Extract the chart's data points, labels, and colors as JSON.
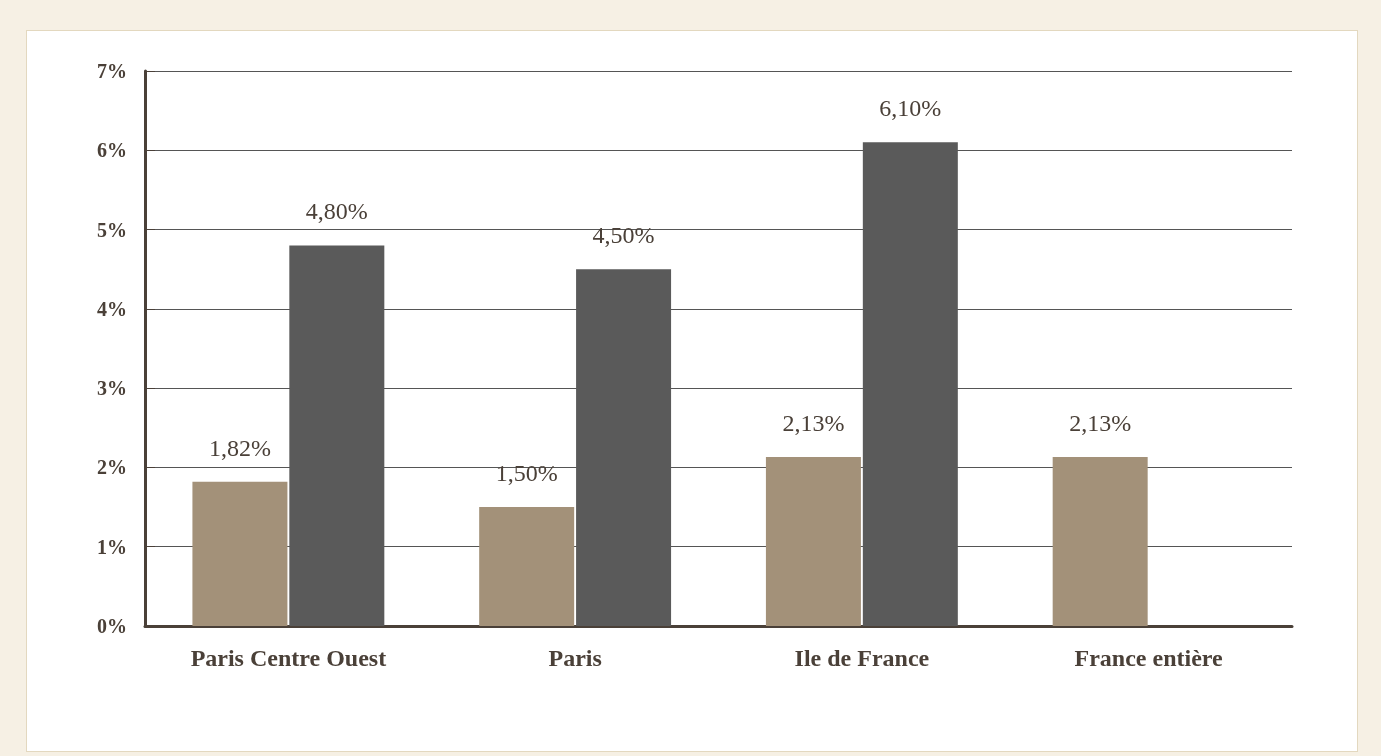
{
  "chart_data": {
    "type": "bar",
    "categories": [
      "Paris Centre Ouest",
      "Paris",
      "Ile de France",
      "France entière"
    ],
    "series": [
      {
        "color": "#a39179",
        "values": [
          1.82,
          1.5,
          2.13,
          2.13
        ],
        "value_labels": [
          "1,82%",
          "1,50%",
          "2,13%",
          "2,13%"
        ]
      },
      {
        "color": "#5a5a5a",
        "values": [
          4.8,
          4.5,
          6.1,
          null
        ],
        "value_labels": [
          "4,80%",
          "4,50%",
          "6,10%",
          null
        ]
      }
    ],
    "ylim": [
      0,
      7
    ],
    "yticks": [
      {
        "value": 0,
        "label": "0%"
      },
      {
        "value": 1,
        "label": "1%"
      },
      {
        "value": 2,
        "label": "2%"
      },
      {
        "value": 3,
        "label": "3%"
      },
      {
        "value": 4,
        "label": "4%"
      },
      {
        "value": 5,
        "label": "5%"
      },
      {
        "value": 6,
        "label": "6%"
      },
      {
        "value": 7,
        "label": "7%"
      }
    ],
    "grid": "y"
  }
}
